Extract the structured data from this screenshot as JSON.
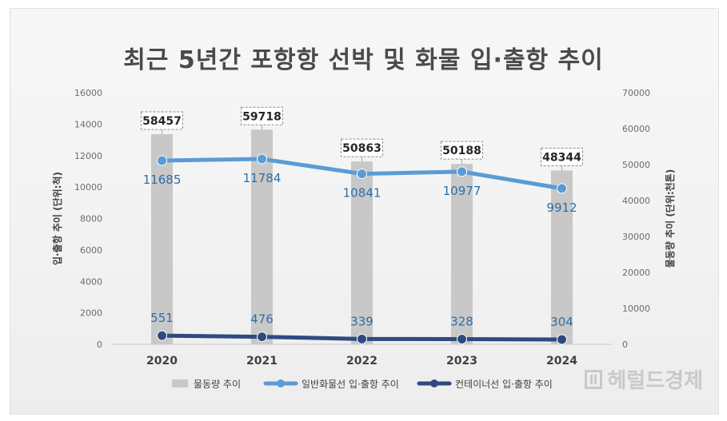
{
  "chart_data": {
    "type": "bar+line",
    "title": "최근 5년간 포항항 선박 및 화물 입·출항 추이",
    "categories": [
      "2020",
      "2021",
      "2022",
      "2023",
      "2024"
    ],
    "left_axis": {
      "label": "입·출항 추이 (단위:척)",
      "ylim": [
        0,
        16000
      ],
      "ticks": [
        "0",
        "2000",
        "4000",
        "6000",
        "8000",
        "10000",
        "12000",
        "14000",
        "16000"
      ]
    },
    "right_axis": {
      "label": "물동량 추이 (단위:천톤)",
      "ylim": [
        0,
        70000
      ],
      "ticks": [
        "0",
        "10000",
        "20000",
        "30000",
        "40000",
        "50000",
        "60000",
        "70000"
      ]
    },
    "series": [
      {
        "name": "물동량 추이",
        "type": "bar",
        "axis": "right",
        "values": [
          58457,
          59718,
          50863,
          50188,
          48344
        ],
        "labels": [
          "58457",
          "59718",
          "50863",
          "50188",
          "48344"
        ]
      },
      {
        "name": "일반화물선 입·출항 추이",
        "type": "line",
        "axis": "left",
        "values": [
          11685,
          11784,
          10841,
          10977,
          9912
        ],
        "labels": [
          "11685",
          "11784",
          "10841",
          "10977",
          "9912"
        ]
      },
      {
        "name": "컨테이너선 입·출항 추이",
        "type": "line",
        "axis": "left",
        "values": [
          551,
          476,
          339,
          328,
          304
        ],
        "labels": [
          "551",
          "476",
          "339",
          "328",
          "304"
        ]
      }
    ],
    "legend_position": "bottom",
    "colors": {
      "bar": "#c8c8c8",
      "general": "#5b9bd5",
      "container": "#2f4a7f"
    }
  },
  "watermark": "헤럴드경제"
}
